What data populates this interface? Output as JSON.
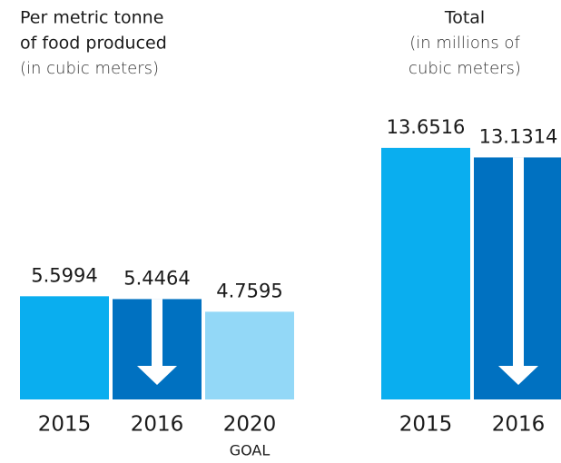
{
  "chart_data": [
    {
      "type": "bar",
      "title": [
        "Per metric tonne",
        "of food produced"
      ],
      "subtitle": [
        "(in cubic meters)"
      ],
      "categories": [
        "2015",
        "2016",
        "2020"
      ],
      "values": [
        5.5994,
        5.4464,
        4.7595
      ],
      "colors": [
        "#0aaeef",
        "#0071c1",
        "#93d8f7"
      ],
      "annotation": "GOAL"
    },
    {
      "type": "bar",
      "title": [
        "Total"
      ],
      "subtitle": [
        "(in millions of",
        "cubic meters)"
      ],
      "categories": [
        "2015",
        "2016"
      ],
      "values": [
        13.6516,
        13.1314
      ],
      "colors": [
        "#0aaeef",
        "#0071c1"
      ]
    }
  ]
}
